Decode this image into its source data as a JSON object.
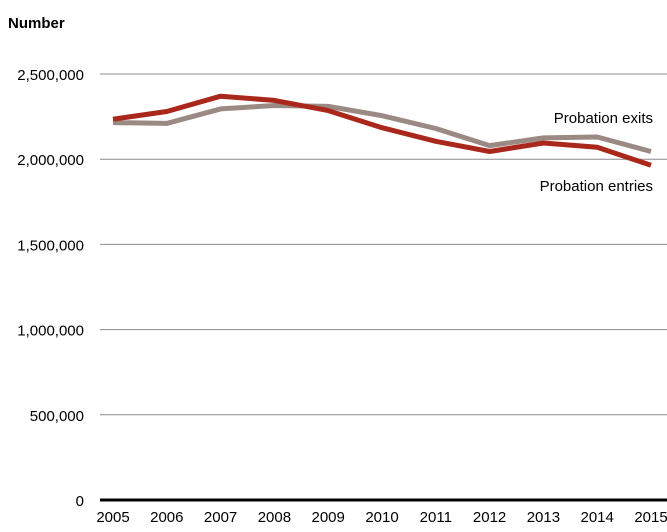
{
  "chart_data": {
    "type": "line",
    "title": "",
    "xlabel": "",
    "ylabel": "Number",
    "x": [
      "2005",
      "2006",
      "2007",
      "2008",
      "2009",
      "2010",
      "2011",
      "2012",
      "2013",
      "2014",
      "2015"
    ],
    "y_ticks": [
      "0",
      "500,000",
      "1,000,000",
      "1,500,000",
      "2,000,000",
      "2,500,000"
    ],
    "ylim": [
      0,
      2500000
    ],
    "grid": true,
    "legend": "inline labels at right end of lines",
    "series": [
      {
        "name": "Probation exits",
        "color": "#9b8a84",
        "values": [
          2215000,
          2210000,
          2295000,
          2315000,
          2310000,
          2255000,
          2180000,
          2080000,
          2125000,
          2130000,
          2045000
        ]
      },
      {
        "name": "Probation entries",
        "color": "#a9281b",
        "values": [
          2235000,
          2280000,
          2370000,
          2345000,
          2285000,
          2185000,
          2105000,
          2045000,
          2095000,
          2070000,
          1965000
        ]
      }
    ]
  }
}
